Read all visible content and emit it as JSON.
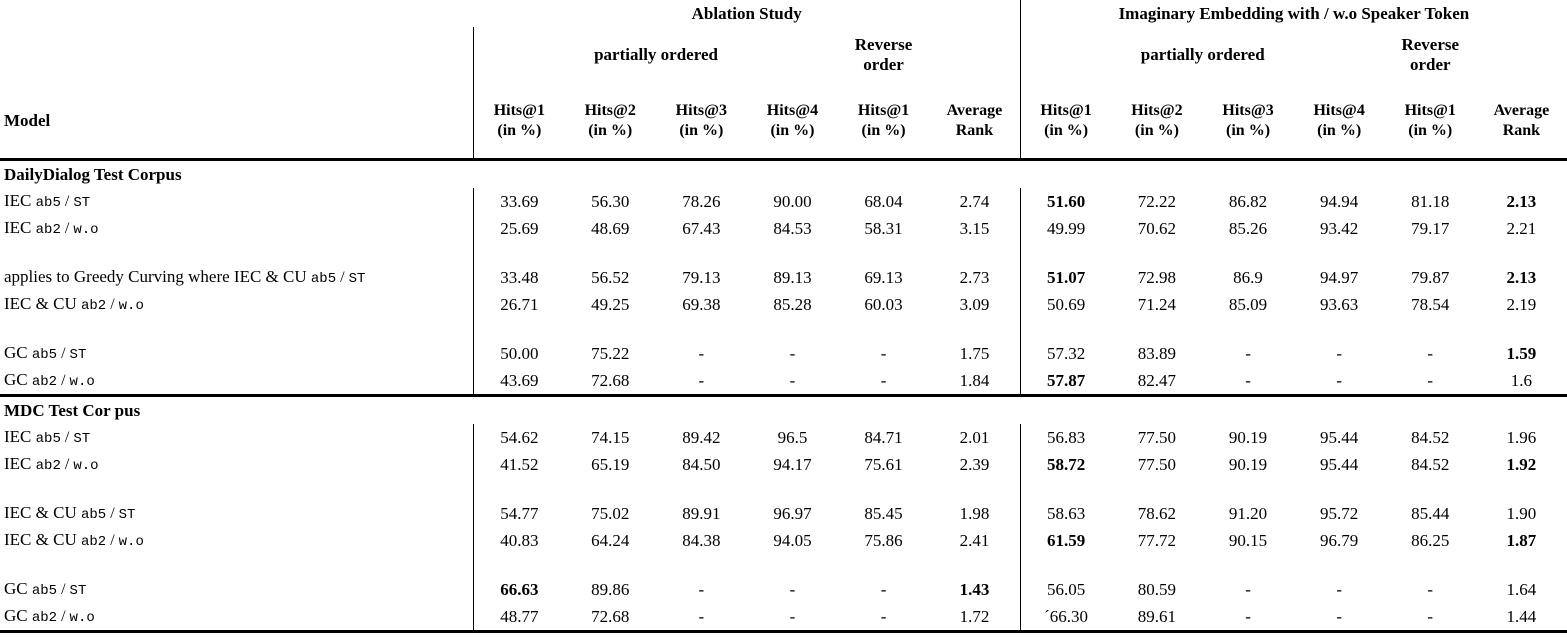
{
  "table": {
    "model_header": "Model",
    "groups": [
      {
        "title": "Ablation Study",
        "partial_label": "partially ordered",
        "reverse_label_l1": "Reverse",
        "reverse_label_l2": "order",
        "columns": [
          {
            "l1": "Hits@1",
            "l2": "(in %)"
          },
          {
            "l1": "Hits@2",
            "l2": "(in %)"
          },
          {
            "l1": "Hits@3",
            "l2": "(in %)"
          },
          {
            "l1": "Hits@4",
            "l2": "(in %)"
          },
          {
            "l1": "Hits@1",
            "l2": "(in %)"
          },
          {
            "l1": "Average",
            "l2": "Rank"
          }
        ]
      },
      {
        "title": "Imaginary Embedding with / w.o Speaker Token",
        "partial_label": "partially ordered",
        "reverse_label_l1": "Reverse",
        "reverse_label_l2": "order",
        "columns": [
          {
            "l1": "Hits@1",
            "l2": "(in %)"
          },
          {
            "l1": "Hits@2",
            "l2": "(in %)"
          },
          {
            "l1": "Hits@3",
            "l2": "(in %)"
          },
          {
            "l1": "Hits@4",
            "l2": "(in %)"
          },
          {
            "l1": "Hits@1",
            "l2": "(in %)"
          },
          {
            "l1": "Average",
            "l2": "Rank"
          }
        ]
      }
    ],
    "sections": [
      {
        "name": "DailyDialog Test Corpus",
        "rows": [
          {
            "type": "data",
            "label_prefix": "IEC",
            "label_code1": "ab5",
            "label_sep": " / ",
            "label_code2": "ST",
            "values": [
              "33.69",
              "56.30",
              "78.26",
              "90.00",
              "68.04",
              "2.74",
              "51.60",
              "72.22",
              "86.82",
              "94.94",
              "81.18",
              "2.13"
            ],
            "bold": [
              6,
              11
            ]
          },
          {
            "type": "data",
            "label_prefix": "IEC",
            "label_code1": "ab2",
            "label_sep": " / ",
            "label_code2": "w.o",
            "values": [
              "25.69",
              "48.69",
              "67.43",
              "84.53",
              "58.31",
              "3.15",
              "49.99",
              "70.62",
              "85.26",
              "93.42",
              "79.17",
              "2.21"
            ],
            "bold": []
          },
          {
            "type": "spacer"
          },
          {
            "type": "data",
            "label_prefix": "applies to Greedy Curving where IEC & CU",
            "label_code1": "ab5",
            "label_sep": " / ",
            "label_code2": "ST",
            "values": [
              "33.48",
              "56.52",
              "79.13",
              "89.13",
              "69.13",
              "2.73",
              "51.07",
              "72.98",
              "86.9",
              "94.97",
              "79.87",
              "2.13"
            ],
            "bold": [
              6,
              11
            ]
          },
          {
            "type": "data",
            "label_prefix": "IEC & CU",
            "label_code1": "ab2",
            "label_sep": " / ",
            "label_code2": "w.o",
            "values": [
              "26.71",
              "49.25",
              "69.38",
              "85.28",
              "60.03",
              "3.09",
              "50.69",
              "71.24",
              "85.09",
              "93.63",
              "78.54",
              "2.19"
            ],
            "bold": []
          },
          {
            "type": "spacer"
          },
          {
            "type": "data",
            "label_prefix": "GC",
            "label_code1": "ab5",
            "label_sep": " / ",
            "label_code2": "ST",
            "values": [
              "50.00",
              "75.22",
              "-",
              "-",
              "-",
              "1.75",
              "57.32",
              "83.89",
              "-",
              "-",
              "-",
              "1.59"
            ],
            "bold": [
              11
            ]
          },
          {
            "type": "data",
            "label_prefix": "GC",
            "label_code1": "ab2",
            "label_sep": " / ",
            "label_code2": "w.o",
            "values": [
              "43.69",
              "72.68",
              "-",
              "-",
              "-",
              "1.84",
              "57.87",
              "82.47",
              "-",
              "-",
              "-",
              "1.6"
            ],
            "bold": [
              6
            ]
          }
        ]
      },
      {
        "name": "MDC Test Cor pus",
        "rows": [
          {
            "type": "data",
            "label_prefix": "IEC",
            "label_code1": "ab5",
            "label_sep": " / ",
            "label_code2": "ST",
            "values": [
              "54.62",
              "74.15",
              "89.42",
              "96.5",
              "84.71",
              "2.01",
              "56.83",
              "77.50",
              "90.19",
              "95.44",
              "84.52",
              "1.96"
            ],
            "bold": []
          },
          {
            "type": "data",
            "label_prefix": "IEC",
            "label_code1": "ab2",
            "label_sep": " / ",
            "label_code2": "w.o",
            "values": [
              "41.52",
              "65.19",
              "84.50",
              "94.17",
              "75.61",
              "2.39",
              "58.72",
              "77.50",
              "90.19",
              "95.44",
              "84.52",
              "1.92"
            ],
            "bold": [
              6,
              11
            ]
          },
          {
            "type": "spacer"
          },
          {
            "type": "data",
            "label_prefix": "IEC & CU",
            "label_code1": "ab5",
            "label_sep": " / ",
            "label_code2": "ST",
            "values": [
              "54.77",
              "75.02",
              "89.91",
              "96.97",
              "85.45",
              "1.98",
              "58.63",
              "78.62",
              "91.20",
              "95.72",
              "85.44",
              "1.90"
            ],
            "bold": []
          },
          {
            "type": "data",
            "label_prefix": "IEC & CU",
            "label_code1": "ab2",
            "label_sep": " / ",
            "label_code2": "w.o",
            "values": [
              "40.83",
              "64.24",
              "84.38",
              "94.05",
              "75.86",
              "2.41",
              "61.59",
              "77.72",
              "90.15",
              "96.79",
              "86.25",
              "1.87"
            ],
            "bold": [
              6,
              11
            ]
          },
          {
            "type": "spacer"
          },
          {
            "type": "data",
            "label_prefix": "GC",
            "label_code1": "ab5",
            "label_sep": " / ",
            "label_code2": "ST",
            "values": [
              "66.63",
              "89.86",
              "-",
              "-",
              "-",
              "1.43",
              "56.05",
              "80.59",
              "-",
              "-",
              "-",
              "1.64"
            ],
            "bold": [
              0,
              5
            ]
          },
          {
            "type": "data",
            "label_prefix": "GC",
            "label_code1": "ab2",
            "label_sep": " / ",
            "label_code2": "w.o",
            "values": [
              "48.77",
              "72.68",
              "-",
              "-",
              "-",
              "1.72",
              "´66.30",
              "89.61",
              "-",
              "-",
              "-",
              "1.44"
            ],
            "bold": []
          }
        ]
      }
    ]
  }
}
